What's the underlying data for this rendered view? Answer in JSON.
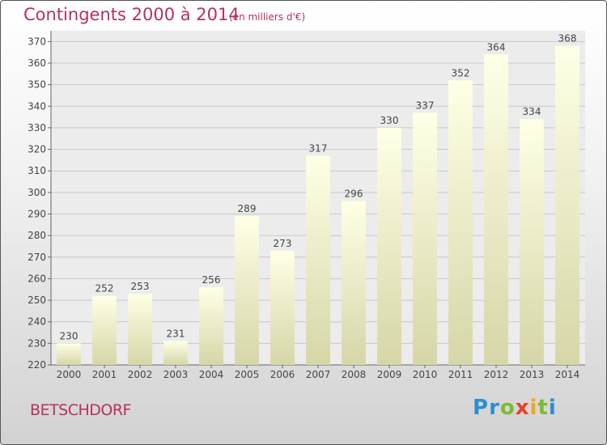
{
  "title": "Contingents 2000 à 2014",
  "subtitle": "(en milliers d'€)",
  "commune": "BETSCHDORF",
  "logo": {
    "letters": [
      "P",
      "r",
      "o",
      "x",
      "i",
      "t",
      "i"
    ],
    "colors": [
      "#2a8fd0",
      "#2a8fd0",
      "#7dba2f",
      "#e8412a",
      "#f0a81c",
      "#7dba2f",
      "#2a8fd0"
    ]
  },
  "colors": {
    "title": "#b5325a",
    "bar_top": "#ffffe6",
    "bar_bottom": "#d6d6a8",
    "grid": "#c8c8c8"
  },
  "chart_data": {
    "type": "bar",
    "categories": [
      "2000",
      "2001",
      "2002",
      "2003",
      "2004",
      "2005",
      "2006",
      "2007",
      "2008",
      "2009",
      "2010",
      "2011",
      "2012",
      "2013",
      "2014"
    ],
    "values": [
      230,
      252,
      253,
      231,
      256,
      289,
      273,
      317,
      296,
      330,
      337,
      352,
      364,
      334,
      368
    ],
    "ylim": [
      220,
      370
    ],
    "yticks": [
      220,
      230,
      240,
      250,
      260,
      270,
      280,
      290,
      300,
      310,
      320,
      330,
      340,
      350,
      360,
      370
    ],
    "grid": true
  }
}
